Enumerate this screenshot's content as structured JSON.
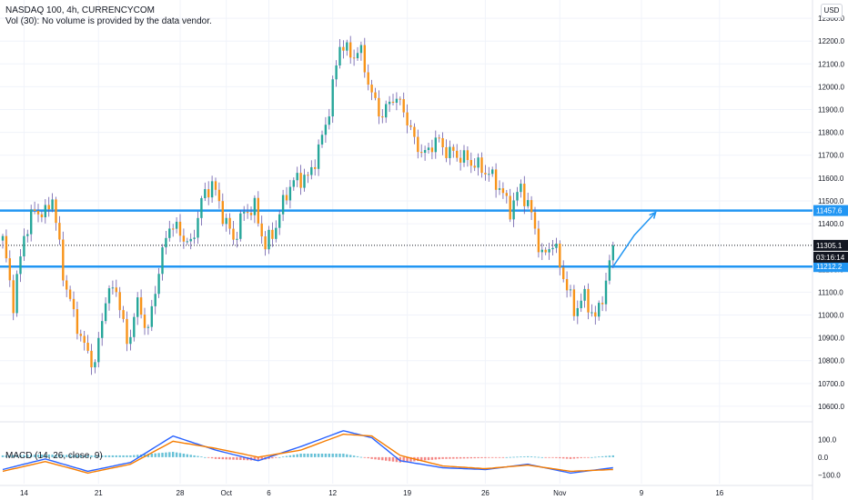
{
  "header": {
    "title": "NASDAQ 100, 4h, CURRENCYCOM",
    "volume_note": "Vol (30): No volume is provided by the data vendor.",
    "currency_button": "USD"
  },
  "colors": {
    "up": "#26a69a",
    "down": "#f7931a",
    "wick": "#6a5aa8",
    "level_line": "#2196f3",
    "macd_line": "#2962ff",
    "signal_line": "#f57c00",
    "hist_pos": "#26a6c6",
    "hist_neg": "#ef5350",
    "grid": "#f0f3fa"
  },
  "chart_data": [
    {
      "type": "line",
      "subtype": "candlestick",
      "title": "NASDAQ 100, 4h, CURRENCYCOM",
      "xlabel": "",
      "ylabel": "",
      "y_axis_side": "right",
      "ylim": [
        10540,
        12380
      ],
      "y_ticks": [
        12300.0,
        12200.0,
        12100.0,
        12000.0,
        11900.0,
        11800.0,
        11700.0,
        11600.0,
        11500.0,
        11400.0,
        11200.0,
        11100.0,
        11000.0,
        10900.0,
        10800.0,
        10700.0,
        10600.0
      ],
      "y_tick_top_partial": "12400.0",
      "x_ticks": [
        "14",
        "21",
        "28",
        "Oct",
        "6",
        "12",
        "19",
        "26",
        "Nov",
        "9",
        "16"
      ],
      "grid": true,
      "horizontal_levels": [
        {
          "value": 11457.6,
          "label": "11457.6"
        },
        {
          "value": 11212.2,
          "label": "11212.2"
        }
      ],
      "last_price": {
        "value": 11305.1,
        "label": "11305.1",
        "countdown": "03:16:14"
      },
      "projection_path": [
        [
          11212.2,
          0
        ],
        [
          11350,
          3
        ],
        [
          11450,
          6
        ]
      ],
      "close_anchors": [
        [
          0,
          11330
        ],
        [
          3,
          11050
        ],
        [
          6,
          11350
        ],
        [
          9,
          11460
        ],
        [
          12,
          11440
        ],
        [
          14,
          11520
        ],
        [
          17,
          11180
        ],
        [
          20,
          11000
        ],
        [
          23,
          10860
        ],
        [
          26,
          10780
        ],
        [
          29,
          11080
        ],
        [
          32,
          11120
        ],
        [
          35,
          10870
        ],
        [
          38,
          11050
        ],
        [
          41,
          10930
        ],
        [
          44,
          11200
        ],
        [
          47,
          11400
        ],
        [
          50,
          11360
        ],
        [
          53,
          11300
        ],
        [
          56,
          11500
        ],
        [
          59,
          11580
        ],
        [
          62,
          11440
        ],
        [
          65,
          11330
        ],
        [
          68,
          11450
        ],
        [
          71,
          11470
        ],
        [
          74,
          11300
        ],
        [
          77,
          11390
        ],
        [
          80,
          11540
        ],
        [
          83,
          11600
        ],
        [
          86,
          11600
        ],
        [
          89,
          11720
        ],
        [
          92,
          11900
        ],
        [
          95,
          12190
        ],
        [
          98,
          12140
        ],
        [
          101,
          12150
        ],
        [
          104,
          11960
        ],
        [
          107,
          11870
        ],
        [
          110,
          11960
        ],
        [
          113,
          11900
        ],
        [
          116,
          11760
        ],
        [
          119,
          11700
        ],
        [
          122,
          11770
        ],
        [
          125,
          11720
        ],
        [
          128,
          11700
        ],
        [
          131,
          11680
        ],
        [
          134,
          11650
        ],
        [
          137,
          11620
        ],
        [
          140,
          11560
        ],
        [
          143,
          11460
        ],
        [
          146,
          11560
        ],
        [
          149,
          11440
        ],
        [
          152,
          11250
        ],
        [
          155,
          11320
        ],
        [
          158,
          11170
        ],
        [
          161,
          11020
        ],
        [
          164,
          11080
        ],
        [
          167,
          10980
        ],
        [
          170,
          11140
        ],
        [
          172,
          11305.1
        ]
      ],
      "candle_count": 173
    },
    {
      "type": "line",
      "title": "MACD (14, 26, close, 9)",
      "y_ticks": [
        100.0,
        0.0,
        -100.0
      ],
      "ylim": [
        -150,
        190
      ],
      "series": [
        {
          "name": "MACD",
          "x": [
            0,
            12,
            24,
            36,
            48,
            60,
            72,
            84,
            96,
            104,
            112,
            124,
            136,
            148,
            160,
            172
          ],
          "values": [
            -70,
            -10,
            -80,
            -30,
            120,
            40,
            -20,
            60,
            150,
            110,
            -20,
            -60,
            -70,
            -40,
            -90,
            -60
          ]
        },
        {
          "name": "Signal",
          "x": [
            0,
            12,
            24,
            36,
            48,
            60,
            72,
            84,
            96,
            104,
            112,
            124,
            136,
            148,
            160,
            172
          ],
          "values": [
            -80,
            -25,
            -90,
            -40,
            90,
            50,
            0,
            40,
            130,
            120,
            10,
            -50,
            -65,
            -45,
            -80,
            -70
          ]
        }
      ]
    }
  ]
}
